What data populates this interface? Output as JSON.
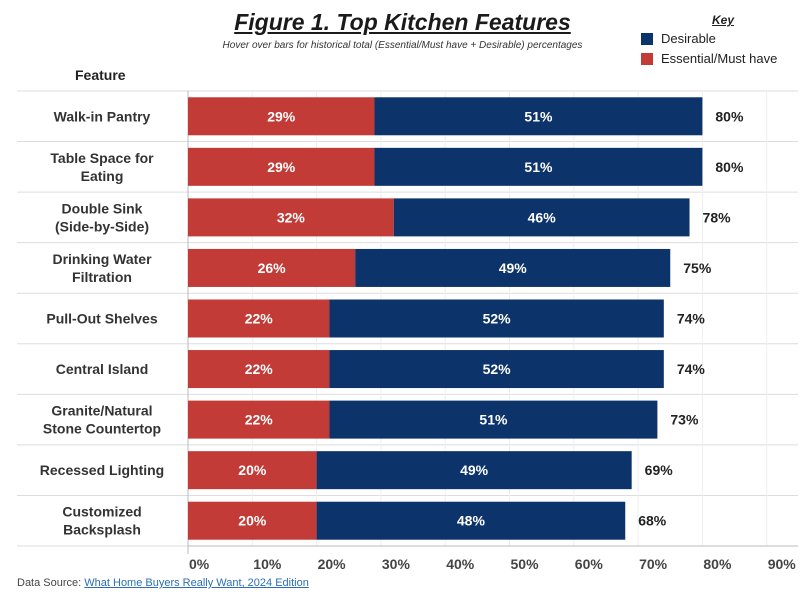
{
  "header": {
    "title": "Figure 1. Top Kitchen Features",
    "subtitle": "Hover over bars for historical total (Essential/Must have + Desirable) percentages",
    "feature_column": "Feature"
  },
  "legend": {
    "title": "Key",
    "items": [
      {
        "label": "Desirable",
        "color": "#0d336b"
      },
      {
        "label": "Essential/Must have",
        "color": "#c23b36"
      }
    ]
  },
  "footer": {
    "source_prefix": "Data Source: ",
    "source_link": "What Home Buyers Really Want, 2024 Edition"
  },
  "chart_data": {
    "type": "bar",
    "orientation": "horizontal",
    "stacked": true,
    "title": "Figure 1. Top Kitchen Features",
    "categories": [
      [
        "Walk-in Pantry"
      ],
      [
        "Table Space for",
        "Eating"
      ],
      [
        "Double Sink",
        "(Side-by-Side)"
      ],
      [
        "Drinking Water",
        "Filtration"
      ],
      [
        "Pull-Out Shelves"
      ],
      [
        "Central Island"
      ],
      [
        "Granite/Natural",
        "Stone Countertop"
      ],
      [
        "Recessed Lighting"
      ],
      [
        "Customized",
        "Backsplash"
      ]
    ],
    "series": [
      {
        "name": "Essential/Must have",
        "color": "#c23b36",
        "values": [
          29,
          29,
          32,
          26,
          22,
          22,
          22,
          20,
          20
        ]
      },
      {
        "name": "Desirable",
        "color": "#0d336b",
        "values": [
          51,
          51,
          46,
          49,
          52,
          52,
          51,
          49,
          48
        ]
      }
    ],
    "totals": [
      80,
      80,
      78,
      75,
      74,
      74,
      73,
      69,
      68
    ],
    "xlim": [
      0,
      90
    ],
    "xticks": [
      "0%",
      "10%",
      "20%",
      "30%",
      "40%",
      "50%",
      "60%",
      "70%",
      "80%",
      "90%"
    ],
    "value_suffix": "%",
    "grid": true,
    "legend_position": "top-right"
  }
}
